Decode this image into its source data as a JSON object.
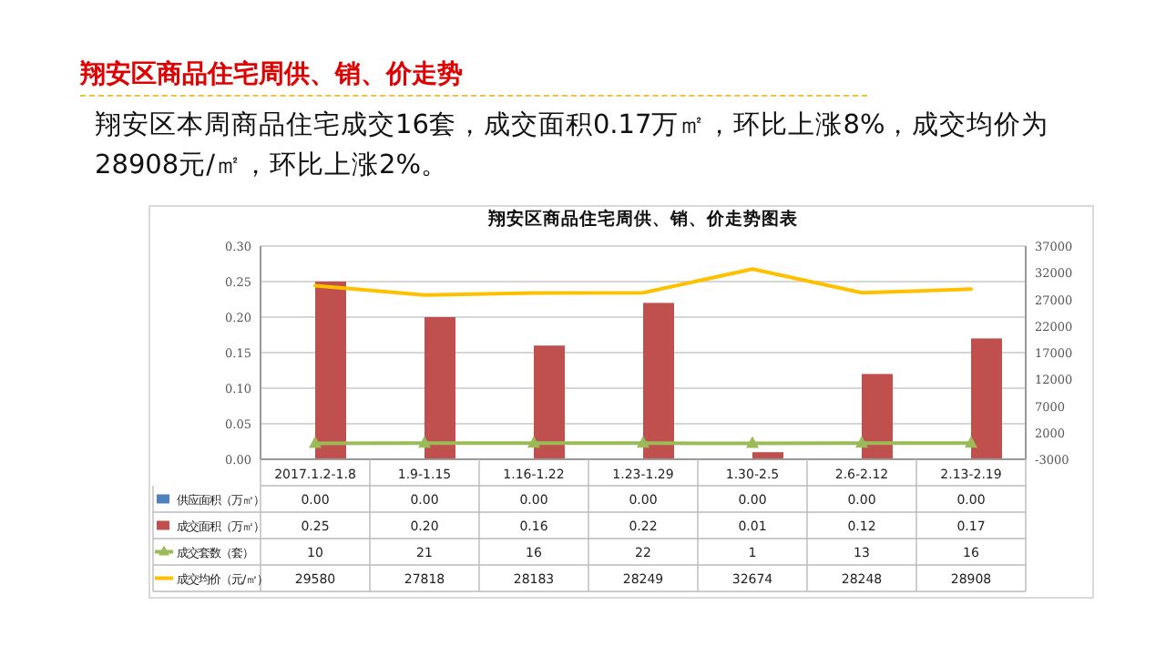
{
  "chart_data": {
    "type": "bar",
    "title": "翔安区商品住宅周供、销、价走势图表",
    "annotations": [
      "翔安区商品住宅周供、销、价走势",
      "翔安区本周商品住宅成交16套，成交面积0.17万㎡，环比上涨8%，成交均价为28908元/㎡，环比上涨2%。"
    ],
    "categories": [
      "2017.1.2-1.8",
      "1.9-1.15",
      "1.16-1.22",
      "1.23-1.29",
      "1.30-2.5",
      "2.6-2.12",
      "2.13-2.19"
    ],
    "series": [
      {
        "name": "供应面积（万㎡）",
        "color": "#4f81bd",
        "values": [
          0,
          0,
          0,
          0,
          0,
          0,
          0
        ],
        "value_labels": [
          "0.00",
          "0.00",
          "0.00",
          "0.00",
          "0.00",
          "0.00",
          "0.00"
        ]
      },
      {
        "name": "成交面积（万㎡）",
        "color": "#c0504d",
        "values": [
          0.25,
          0.2,
          0.16,
          0.22,
          0.01,
          0.12,
          0.17
        ],
        "value_labels": [
          "0.25",
          "0.20",
          "0.16",
          "0.22",
          "0.01",
          "0.12",
          "0.17"
        ]
      },
      {
        "name": "成交套数（套）",
        "type": "line",
        "axis": "y2",
        "marker": "triangle",
        "color": "#9bbb59",
        "values": [
          10,
          21,
          16,
          22,
          1,
          13,
          16
        ]
      },
      {
        "name": "成交均价（元/㎡）",
        "type": "line",
        "axis": "y2",
        "marker": "none",
        "color": "#ffc000",
        "values": [
          29580,
          27818,
          28183,
          28249,
          32674,
          28248,
          28908
        ]
      }
    ],
    "ylim": [
      0,
      0.3
    ],
    "yticks": [
      {
        "value": 0,
        "label": "0.00"
      },
      {
        "value": 0.05,
        "label": "0.05"
      },
      {
        "value": 0.1,
        "label": "0.10"
      },
      {
        "value": 0.15,
        "label": "0.15"
      },
      {
        "value": 0.2,
        "label": "0.20"
      },
      {
        "value": 0.25,
        "label": "0.25"
      },
      {
        "value": 0.3,
        "label": "0.30"
      }
    ],
    "y2lim": [
      -3000,
      37000
    ],
    "y2ticks": [
      -3000,
      2000,
      7000,
      12000,
      17000,
      22000,
      27000,
      32000,
      37000
    ],
    "grid": "y",
    "legend": "bottom",
    "data_labels": true
  }
}
